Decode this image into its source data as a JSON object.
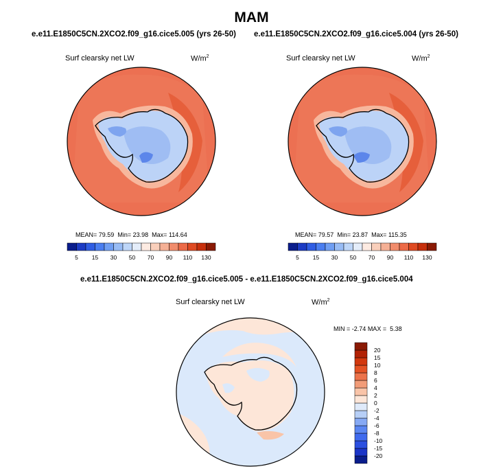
{
  "figure": {
    "season": "MAM",
    "case_a": "e.e11.E1850C5CN.2XCO2.f09_g16.cice5.005 (yrs 26-50)",
    "case_b": "e.e11.E1850C5CN.2XCO2.f09_g16.cice5.004 (yrs 26-50)",
    "diff_title": "e.e11.E1850C5CN.2XCO2.f09_g16.cice5.005 - e.e11.E1850C5CN.2XCO2.f09_g16.cice5.004"
  },
  "chart_data": [
    {
      "type": "heatmap",
      "projection": "south-polar-stereographic",
      "panel": "top-left",
      "title": "Surf clearsky net LW",
      "units": "W/m",
      "units_exp": "2",
      "stats": {
        "mean_label": "MEAN=",
        "mean": "79.59",
        "min_label": "Min=",
        "min": "23.98",
        "max_label": "Max=",
        "max": "114.64"
      },
      "colorbar": {
        "orientation": "horizontal",
        "levels": [
          5,
          10,
          15,
          20,
          30,
          40,
          50,
          60,
          70,
          80,
          90,
          100,
          110,
          120,
          130
        ],
        "tick_labels": [
          "5",
          "15",
          "30",
          "50",
          "70",
          "90",
          "110",
          "130"
        ],
        "colors": [
          "#0a1d8c",
          "#1c3bc4",
          "#2f5de3",
          "#4a7ef0",
          "#6f9ef3",
          "#98bcf5",
          "#bed6f8",
          "#e4edfa",
          "#fdebe2",
          "#f9cfbb",
          "#f5b095",
          "#f18c6c",
          "#ec6a47",
          "#df4a22",
          "#c72f0c",
          "#8a1a04"
        ]
      }
    },
    {
      "type": "heatmap",
      "projection": "south-polar-stereographic",
      "panel": "top-right",
      "title": "Surf clearsky net LW",
      "units": "W/m",
      "units_exp": "2",
      "stats": {
        "mean_label": "MEAN=",
        "mean": "79.57",
        "min_label": "Min=",
        "min": "23.87",
        "max_label": "Max=",
        "max": "115.35"
      },
      "colorbar": {
        "orientation": "horizontal",
        "levels": [
          5,
          10,
          15,
          20,
          30,
          40,
          50,
          60,
          70,
          80,
          90,
          100,
          110,
          120,
          130
        ],
        "tick_labels": [
          "5",
          "15",
          "30",
          "50",
          "70",
          "90",
          "110",
          "130"
        ],
        "colors": [
          "#0a1d8c",
          "#1c3bc4",
          "#2f5de3",
          "#4a7ef0",
          "#6f9ef3",
          "#98bcf5",
          "#bed6f8",
          "#e4edfa",
          "#fdebe2",
          "#f9cfbb",
          "#f5b095",
          "#f18c6c",
          "#ec6a47",
          "#df4a22",
          "#c72f0c",
          "#8a1a04"
        ]
      }
    },
    {
      "type": "heatmap",
      "projection": "south-polar-stereographic",
      "panel": "bottom",
      "title": "Surf clearsky net LW",
      "units": "W/m",
      "units_exp": "2",
      "stats": {
        "min_label": "MIN =",
        "min": "-2.74",
        "max_label": "MAX =",
        "max": "5.38"
      },
      "colorbar": {
        "orientation": "vertical",
        "levels": [
          -20,
          -15,
          -10,
          -8,
          -6,
          -4,
          -2,
          0,
          2,
          4,
          6,
          8,
          10,
          15,
          20
        ],
        "tick_labels": [
          "-20",
          "-15",
          "-10",
          "-8",
          "-6",
          "-4",
          "-2",
          "0",
          "2",
          "4",
          "6",
          "8",
          "10",
          "15",
          "20"
        ],
        "colors": [
          "#0a1d8c",
          "#1b35c8",
          "#2b4fe0",
          "#3f6aee",
          "#5a86f2",
          "#86a9f4",
          "#b7cff7",
          "#dfeafa",
          "#fde6d8",
          "#f9c4a8",
          "#f29c78",
          "#ec734b",
          "#e45224",
          "#d2380e",
          "#b22205",
          "#8a1a04"
        ]
      },
      "ocean_fill": "#dbe9fb",
      "positive_fill": "#fde6d8"
    }
  ]
}
